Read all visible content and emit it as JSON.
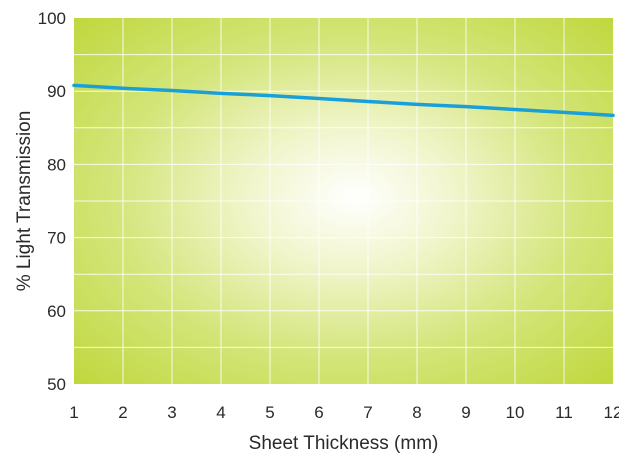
{
  "chart_data": {
    "type": "line",
    "title": "",
    "xlabel": "Sheet Thickness (mm)",
    "ylabel": "% Light Transmission",
    "xlim": [
      1,
      12
    ],
    "ylim": [
      50,
      100
    ],
    "x_ticks": [
      1,
      2,
      3,
      4,
      5,
      6,
      7,
      8,
      9,
      10,
      11,
      12
    ],
    "y_ticks": [
      50,
      60,
      70,
      80,
      90,
      100
    ],
    "grid": true,
    "legend": "none",
    "series": [
      {
        "x": [
          1,
          2,
          3,
          4,
          5,
          6,
          7,
          8,
          9,
          10,
          11,
          12
        ],
        "y": [
          90.8,
          90.4,
          90.1,
          89.7,
          89.4,
          89.0,
          88.6,
          88.2,
          87.9,
          87.5,
          87.1,
          86.7
        ],
        "color": "#1aa0d8"
      }
    ],
    "colors": {
      "plot_center": "#ffffff",
      "plot_edge": "#bfd73a",
      "line": "#1aa0d8",
      "grid": "#ffffff",
      "text": "#2a2a2a"
    }
  }
}
